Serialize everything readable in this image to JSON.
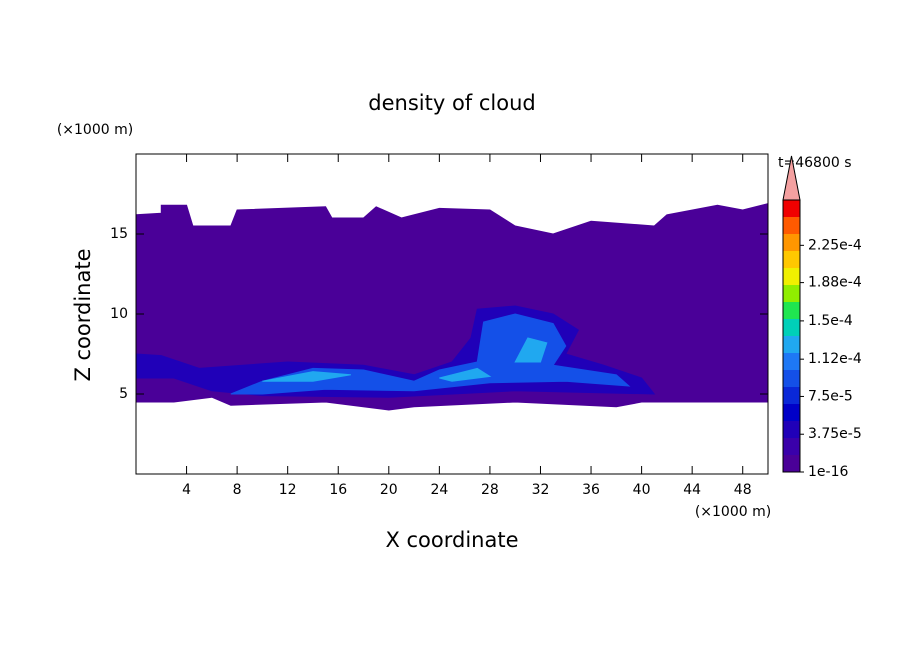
{
  "chart_data": {
    "type": "contour",
    "title": "density of cloud",
    "xlabel": "X coordinate",
    "ylabel": "Z coordinate",
    "xunit": "(×1000 m)",
    "yunit": "(×1000 m)",
    "annotation": "t=46800 s",
    "xlim": [
      0,
      50
    ],
    "xticks": [
      4,
      8,
      12,
      16,
      20,
      24,
      28,
      32,
      36,
      40,
      44,
      48
    ],
    "ylim": [
      0,
      20
    ],
    "yticks": [
      5,
      10,
      15
    ],
    "colorbar": {
      "colors": [
        "#4a0098",
        "#3a00aa",
        "#2000b8",
        "#0000c8",
        "#0a28d8",
        "#1450e8",
        "#1e78f5",
        "#20a8f0",
        "#00d0b8",
        "#20e650",
        "#90ee00",
        "#f0f000",
        "#ffc800",
        "#ff9600",
        "#ff5a00",
        "#f00000"
      ],
      "extend_color": "#f4a0a0",
      "levels": [
        {
          "value": 1e-16,
          "label": "1e-16"
        },
        {
          "value": 3.75e-05,
          "label": "3.75e-5"
        },
        {
          "value": 7.5e-05,
          "label": "7.5e-5"
        },
        {
          "value": 0.000112,
          "label": "1.12e-4"
        },
        {
          "value": 0.00015,
          "label": "1.5e-4"
        },
        {
          "value": 0.000188,
          "label": "1.88e-4"
        },
        {
          "value": 0.000225,
          "label": "2.25e-4"
        }
      ],
      "max": 0.00027
    },
    "regions": [
      {
        "color": "#4a0098",
        "x": [
          0,
          2,
          2,
          4,
          4.5,
          7.5,
          8,
          15,
          15.5,
          18,
          19,
          21,
          24,
          28,
          30,
          33,
          36,
          41,
          42,
          46,
          48,
          50,
          50,
          40,
          38,
          30,
          22,
          20,
          15,
          7.5,
          6,
          3,
          0
        ],
        "z": [
          16.2,
          16.3,
          16.8,
          16.8,
          15.5,
          15.5,
          16.5,
          16.7,
          16.0,
          16.0,
          16.7,
          16.0,
          16.6,
          16.5,
          15.5,
          15.0,
          15.8,
          15.5,
          16.2,
          16.8,
          16.5,
          16.9,
          4.5,
          4.5,
          4.2,
          4.5,
          4.2,
          4.0,
          4.5,
          4.3,
          4.8,
          4.5,
          4.5
        ]
      },
      {
        "color": "#2000b8",
        "x": [
          0,
          2,
          5,
          12,
          18,
          22,
          25,
          26.5,
          27,
          30,
          33,
          35,
          34,
          37,
          40,
          41,
          30,
          20,
          10,
          6,
          3,
          0
        ],
        "z": [
          7.5,
          7.4,
          6.6,
          7.0,
          6.8,
          6.2,
          7.0,
          8.5,
          10.3,
          10.5,
          10.0,
          9.0,
          7.5,
          6.8,
          6.0,
          5.0,
          5.2,
          4.8,
          4.9,
          5.2,
          6.0,
          6.0
        ]
      },
      {
        "color": "#1450e8",
        "x": [
          7.5,
          10,
          14,
          18,
          22,
          24,
          27,
          27.5,
          30,
          33,
          34,
          33,
          38,
          39,
          34,
          28,
          22,
          15,
          10
        ],
        "z": [
          5.0,
          5.8,
          6.6,
          6.5,
          5.8,
          6.5,
          7.0,
          9.5,
          10.0,
          9.4,
          8.0,
          6.8,
          6.2,
          5.5,
          5.8,
          5.7,
          5.2,
          5.3,
          5.0
        ]
      },
      {
        "color": "#20a8f0",
        "x": [
          10,
          14,
          17,
          14
        ],
        "z": [
          5.8,
          6.4,
          6.2,
          5.8
        ]
      },
      {
        "color": "#20a8f0",
        "x": [
          24,
          27,
          28,
          25
        ],
        "z": [
          6.0,
          6.6,
          6.1,
          5.8
        ]
      },
      {
        "color": "#20a8f0",
        "x": [
          30,
          31,
          32.5,
          32
        ],
        "z": [
          7.0,
          8.5,
          8.2,
          7.0
        ]
      }
    ]
  }
}
